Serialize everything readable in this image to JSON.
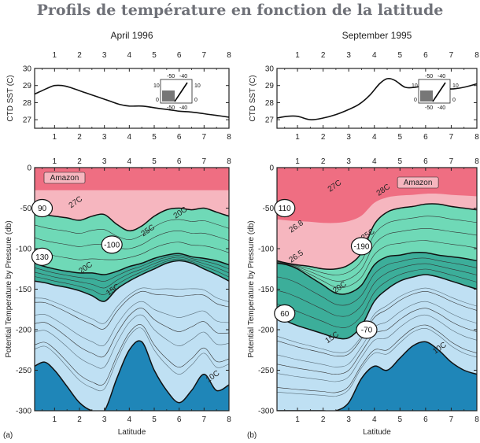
{
  "figure_title": "Profils de température en fonction de la latitude",
  "colors": {
    "warm": "#ef6e82",
    "warm_light": "#f6b6bf",
    "thermocline": "#6fd9b7",
    "thermocline_dark": "#3cae9a",
    "cool": "#bfe0f3",
    "deep": "#1f86b8",
    "contour": "#333333"
  },
  "panels": [
    {
      "id": "a",
      "title": "April 1996",
      "panel_letter": "(a)",
      "sst_label": "CTD SST (C)",
      "depth_label": "Potential Temperature by Pressure (db)",
      "xlabel": "Latitude",
      "region_label": "Amazon",
      "isotherm_labels": [
        "27C",
        "25C",
        "20C",
        "20C",
        "15C",
        "10C"
      ],
      "bubbles": [
        "90",
        "-100",
        "130"
      ],
      "inset_labels": [
        "-50",
        "-40",
        "-50",
        "-40",
        "10",
        "0",
        "10",
        "0"
      ]
    },
    {
      "id": "b",
      "title": "September 1995",
      "panel_letter": "(b)",
      "sst_label": "CTD SST (C)",
      "depth_label": "Potential Temperature by Pressure (db)",
      "xlabel": "Latitude",
      "region_label": "Amazon",
      "isotherm_labels": [
        "27C",
        "28C",
        "25C",
        "26.8",
        "26.5",
        "20C",
        "15C",
        "10C"
      ],
      "bubbles": [
        "110",
        "-190",
        "60",
        "-70"
      ],
      "inset_labels": [
        "-50",
        "-40",
        "-50",
        "-40",
        "10",
        "0",
        "10",
        "0"
      ]
    }
  ],
  "chart_data": [
    {
      "type": "line",
      "panel": "a",
      "title": "April 1996",
      "ylabel": "CTD SST (C)",
      "xlabel": "Latitude",
      "xlim": [
        0.2,
        8
      ],
      "ylim": [
        26.5,
        30
      ],
      "x_ticks": [
        1,
        2,
        3,
        4,
        5,
        6,
        7,
        8
      ],
      "y_ticks": [
        27,
        28,
        29,
        30
      ],
      "x": [
        0.2,
        0.5,
        0.8,
        1.0,
        1.3,
        1.6,
        2.0,
        2.4,
        2.8,
        3.2,
        3.6,
        4.0,
        4.5,
        5.0,
        5.5,
        6.0,
        6.5,
        7.0,
        7.5,
        8.0
      ],
      "y": [
        28.5,
        28.7,
        28.9,
        29.0,
        29.0,
        28.9,
        28.7,
        28.5,
        28.3,
        28.1,
        27.9,
        27.8,
        27.8,
        27.7,
        27.6,
        27.5,
        27.45,
        27.35,
        27.25,
        27.15
      ]
    },
    {
      "type": "line",
      "panel": "b",
      "title": "September 1995",
      "ylabel": "CTD SST (C)",
      "xlabel": "Latitude",
      "xlim": [
        0.2,
        8
      ],
      "ylim": [
        26.5,
        30
      ],
      "x_ticks": [
        1,
        2,
        3,
        4,
        5,
        6,
        7,
        8
      ],
      "y_ticks": [
        27,
        28,
        29,
        30
      ],
      "x": [
        0.2,
        0.6,
        1.0,
        1.5,
        2.0,
        2.5,
        3.0,
        3.4,
        3.8,
        4.2,
        4.5,
        4.8,
        5.2,
        5.6,
        6.0,
        6.5,
        7.0,
        7.5,
        8.0
      ],
      "y": [
        27.1,
        27.2,
        27.2,
        27.0,
        27.1,
        27.3,
        27.6,
        27.9,
        28.4,
        29.1,
        29.4,
        29.3,
        28.9,
        28.9,
        29.0,
        28.9,
        28.8,
        28.9,
        29.1
      ]
    },
    {
      "type": "area",
      "panel": "a",
      "title": "April 1996",
      "ylabel": "Potential Temperature by Pressure (db)",
      "xlabel": "Latitude",
      "xlim": [
        0.2,
        8
      ],
      "ylim": [
        -300,
        0
      ],
      "x_ticks": [
        1,
        2,
        3,
        4,
        5,
        6,
        7,
        8
      ],
      "y_ticks": [
        0,
        -50,
        -100,
        -150,
        -200,
        -250,
        -300
      ],
      "x": [
        0.2,
        0.6,
        1.0,
        1.5,
        2.0,
        2.5,
        3.0,
        3.5,
        4.0,
        4.5,
        5.0,
        5.5,
        6.0,
        6.5,
        7.0,
        7.5,
        8.0
      ],
      "series": [
        {
          "name": "25C",
          "values": [
            -55,
            -58,
            -60,
            -62,
            -65,
            -60,
            -58,
            -70,
            -78,
            -72,
            -60,
            -52,
            -50,
            -52,
            -50,
            -55,
            -60
          ]
        },
        {
          "name": "20C",
          "values": [
            -118,
            -122,
            -125,
            -128,
            -130,
            -130,
            -132,
            -128,
            -122,
            -118,
            -112,
            -108,
            -106,
            -110,
            -112,
            -115,
            -120
          ]
        },
        {
          "name": "15C",
          "values": [
            -140,
            -142,
            -145,
            -148,
            -152,
            -158,
            -165,
            -150,
            -140,
            -132,
            -125,
            -118,
            -115,
            -118,
            -125,
            -132,
            -140
          ]
        },
        {
          "name": "10C",
          "values": [
            -245,
            -240,
            -250,
            -270,
            -290,
            -300,
            -300,
            -260,
            -225,
            -215,
            -250,
            -275,
            -290,
            -275,
            -255,
            -275,
            -268
          ]
        }
      ]
    },
    {
      "type": "area",
      "panel": "b",
      "title": "September 1995",
      "ylabel": "Potential Temperature by Pressure (db)",
      "xlabel": "Latitude",
      "xlim": [
        0.2,
        8
      ],
      "ylim": [
        -300,
        0
      ],
      "x_ticks": [
        1,
        2,
        3,
        4,
        5,
        6,
        7,
        8
      ],
      "y_ticks": [
        0,
        -50,
        -100,
        -150,
        -200,
        -250,
        -300
      ],
      "x": [
        0.2,
        0.6,
        1.0,
        1.5,
        2.0,
        2.5,
        3.0,
        3.5,
        4.0,
        4.5,
        5.0,
        5.5,
        6.0,
        6.5,
        7.0,
        7.5,
        8.0
      ],
      "series": [
        {
          "name": "25C",
          "values": [
            -115,
            -118,
            -120,
            -122,
            -125,
            -125,
            -120,
            -105,
            -70,
            -55,
            -50,
            -48,
            -45,
            -45,
            -48,
            -50,
            -52
          ]
        },
        {
          "name": "20C",
          "values": [
            -118,
            -120,
            -125,
            -135,
            -145,
            -155,
            -155,
            -145,
            -120,
            -110,
            -108,
            -105,
            -105,
            -108,
            -110,
            -112,
            -115
          ]
        },
        {
          "name": "15C",
          "values": [
            -185,
            -190,
            -195,
            -200,
            -205,
            -210,
            -210,
            -195,
            -165,
            -150,
            -140,
            -135,
            -132,
            -135,
            -140,
            -145,
            -150
          ]
        },
        {
          "name": "10C",
          "values": [
            -300,
            -300,
            -300,
            -300,
            -300,
            -300,
            -290,
            -260,
            -245,
            -250,
            -235,
            -220,
            -215,
            -225,
            -240,
            -250,
            -255
          ]
        }
      ]
    }
  ]
}
